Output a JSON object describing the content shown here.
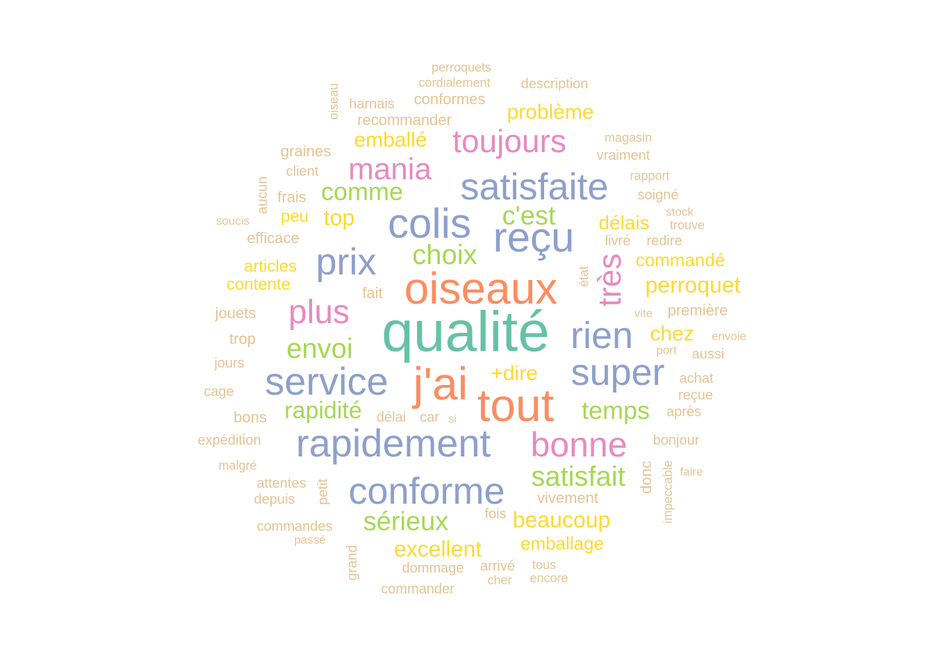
{
  "palette": {
    "teal": "#66c2a5",
    "orange": "#fc8d62",
    "blue": "#8da0cb",
    "pink": "#e78ac3",
    "green": "#a6d854",
    "yellow": "#ffd92f",
    "tan": "#e5c494"
  },
  "words": [
    {
      "text": "qualité",
      "color": "teal"
    },
    {
      "text": "oiseaux",
      "color": "orange"
    },
    {
      "text": "j'ai",
      "color": "orange"
    },
    {
      "text": "tout",
      "color": "orange"
    },
    {
      "text": "colis",
      "color": "blue"
    },
    {
      "text": "reçu",
      "color": "blue"
    },
    {
      "text": "satisfaite",
      "color": "blue"
    },
    {
      "text": "rapidement",
      "color": "blue"
    },
    {
      "text": "service",
      "color": "blue"
    },
    {
      "text": "conforme",
      "color": "blue"
    },
    {
      "text": "super",
      "color": "blue"
    },
    {
      "text": "prix",
      "color": "blue"
    },
    {
      "text": "rien",
      "color": "blue"
    },
    {
      "text": "toujours",
      "color": "pink"
    },
    {
      "text": "mania",
      "color": "pink"
    },
    {
      "text": "plus",
      "color": "pink"
    },
    {
      "text": "très",
      "color": "pink"
    },
    {
      "text": "bonne",
      "color": "pink"
    },
    {
      "text": "choix",
      "color": "green"
    },
    {
      "text": "c'est",
      "color": "green"
    },
    {
      "text": "comme",
      "color": "green"
    },
    {
      "text": "envoi",
      "color": "green"
    },
    {
      "text": "rapidité",
      "color": "green"
    },
    {
      "text": "temps",
      "color": "green"
    },
    {
      "text": "satisfait",
      "color": "green"
    },
    {
      "text": "sérieux",
      "color": "green"
    },
    {
      "text": "problème",
      "color": "yellow"
    },
    {
      "text": "emballé",
      "color": "yellow"
    },
    {
      "text": "top",
      "color": "yellow"
    },
    {
      "text": "peu",
      "color": "yellow"
    },
    {
      "text": "délais",
      "color": "yellow"
    },
    {
      "text": "commandé",
      "color": "yellow"
    },
    {
      "text": "perroquet",
      "color": "yellow"
    },
    {
      "text": "articles",
      "color": "yellow"
    },
    {
      "text": "contente",
      "color": "yellow"
    },
    {
      "text": "chez",
      "color": "yellow"
    },
    {
      "text": "+dire",
      "color": "yellow"
    },
    {
      "text": "beaucoup",
      "color": "yellow"
    },
    {
      "text": "emballage",
      "color": "yellow"
    },
    {
      "text": "excellent",
      "color": "yellow"
    },
    {
      "text": "perroquets",
      "color": "tan"
    },
    {
      "text": "cordialement",
      "color": "tan"
    },
    {
      "text": "description",
      "color": "tan"
    },
    {
      "text": "oiseau",
      "color": "tan"
    },
    {
      "text": "harnais",
      "color": "tan"
    },
    {
      "text": "conformes",
      "color": "tan"
    },
    {
      "text": "recommander",
      "color": "tan"
    },
    {
      "text": "magasin",
      "color": "tan"
    },
    {
      "text": "vraiment",
      "color": "tan"
    },
    {
      "text": "graines",
      "color": "tan"
    },
    {
      "text": "client",
      "color": "tan"
    },
    {
      "text": "rapport",
      "color": "tan"
    },
    {
      "text": "aucun",
      "color": "tan"
    },
    {
      "text": "soigné",
      "color": "tan"
    },
    {
      "text": "frais",
      "color": "tan"
    },
    {
      "text": "stock",
      "color": "tan"
    },
    {
      "text": "trouve",
      "color": "tan"
    },
    {
      "text": "soucis",
      "color": "tan"
    },
    {
      "text": "efficace",
      "color": "tan"
    },
    {
      "text": "livré",
      "color": "tan"
    },
    {
      "text": "redire",
      "color": "tan"
    },
    {
      "text": "état",
      "color": "tan"
    },
    {
      "text": "fait",
      "color": "tan"
    },
    {
      "text": "jouets",
      "color": "tan"
    },
    {
      "text": "vite",
      "color": "tan"
    },
    {
      "text": "première",
      "color": "tan"
    },
    {
      "text": "trop",
      "color": "tan"
    },
    {
      "text": "envoie",
      "color": "tan"
    },
    {
      "text": "port",
      "color": "tan"
    },
    {
      "text": "aussi",
      "color": "tan"
    },
    {
      "text": "jours",
      "color": "tan"
    },
    {
      "text": "cage",
      "color": "tan"
    },
    {
      "text": "achat",
      "color": "tan"
    },
    {
      "text": "reçue",
      "color": "tan"
    },
    {
      "text": "bons",
      "color": "tan"
    },
    {
      "text": "délai",
      "color": "tan"
    },
    {
      "text": "car",
      "color": "tan"
    },
    {
      "text": "si",
      "color": "tan"
    },
    {
      "text": "après",
      "color": "tan"
    },
    {
      "text": "expédition",
      "color": "tan"
    },
    {
      "text": "bonjour",
      "color": "tan"
    },
    {
      "text": "malgré",
      "color": "tan"
    },
    {
      "text": "donc",
      "color": "tan"
    },
    {
      "text": "faire",
      "color": "tan"
    },
    {
      "text": "attentes",
      "color": "tan"
    },
    {
      "text": "petit",
      "color": "tan"
    },
    {
      "text": "depuis",
      "color": "tan"
    },
    {
      "text": "vivement",
      "color": "tan"
    },
    {
      "text": "impeccable",
      "color": "tan"
    },
    {
      "text": "fois",
      "color": "tan"
    },
    {
      "text": "commandes",
      "color": "tan"
    },
    {
      "text": "passé",
      "color": "tan"
    },
    {
      "text": "grand",
      "color": "tan"
    },
    {
      "text": "dommage",
      "color": "tan"
    },
    {
      "text": "arrivé",
      "color": "tan"
    },
    {
      "text": "tous",
      "color": "tan"
    },
    {
      "text": "cher",
      "color": "tan"
    },
    {
      "text": "encore",
      "color": "tan"
    },
    {
      "text": "commander",
      "color": "tan"
    }
  ]
}
